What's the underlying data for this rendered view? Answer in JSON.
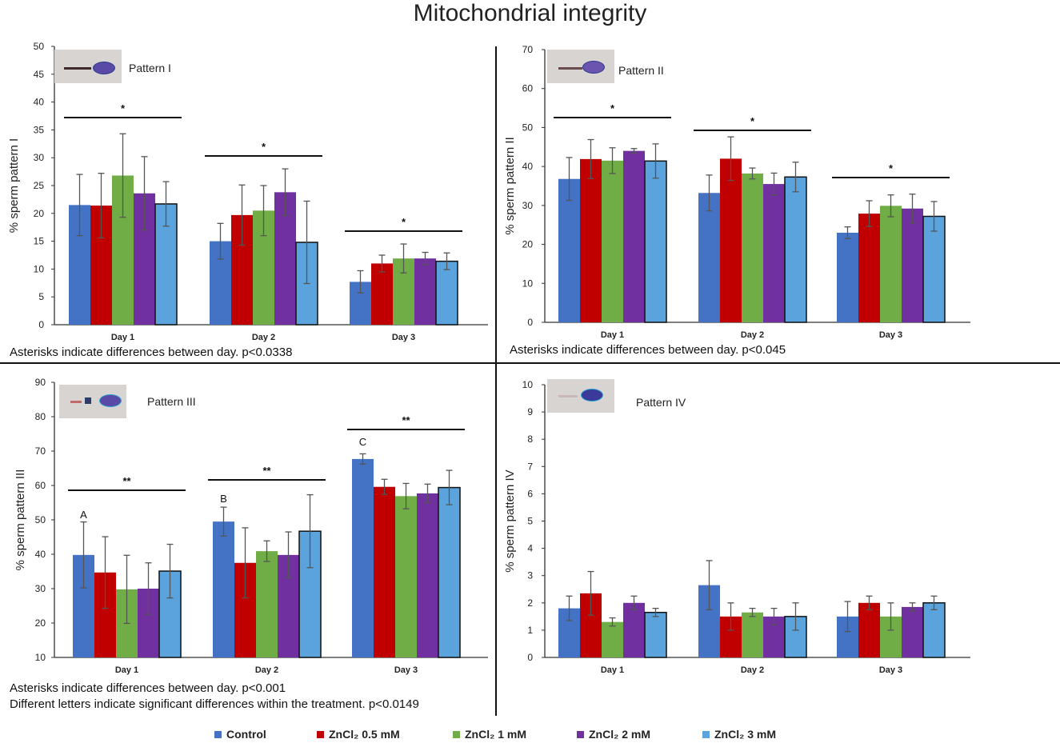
{
  "title": "Mitochondrial integrity",
  "colors": [
    "#4472c4",
    "#c00000",
    "#70ad47",
    "#7030a0",
    "#5ba3dc"
  ],
  "legend": [
    {
      "label": "Control",
      "color": "#4472c4"
    },
    {
      "label": "ZnCl₂ 0.5 mM",
      "color": "#c00000"
    },
    {
      "label": "ZnCl₂ 1 mM",
      "color": "#70ad47"
    },
    {
      "label": "ZnCl₂ 2 mM",
      "color": "#7030a0"
    },
    {
      "label": "ZnCl₂ 3 mM",
      "color": "#5ba3dc"
    }
  ],
  "notes": {
    "p1": "Asterisks indicate differences between day. p<0.0338",
    "p2": "Asterisks indicate differences between day. p<0.045",
    "p3a": "Asterisks indicate differences between day. p<0.001",
    "p3b": "Different letters indicate significant differences within the treatment. p<0.0149"
  },
  "chart_data": [
    {
      "type": "bar",
      "title": "Pattern I",
      "ylabel": "% sperm pattern I",
      "xlabel": "",
      "ylim": [
        0,
        50
      ],
      "yticks": [
        0,
        5,
        10,
        15,
        20,
        25,
        30,
        35,
        40,
        45,
        50
      ],
      "categories": [
        "Day 1",
        "Day 2",
        "Day 3"
      ],
      "series": [
        {
          "name": "Control",
          "values": [
            21.5,
            15.0,
            7.7
          ],
          "errors": [
            5.5,
            3.2,
            2.0
          ]
        },
        {
          "name": "ZnCl₂ 0.5 mM",
          "values": [
            21.4,
            19.7,
            11.0
          ],
          "errors": [
            5.8,
            5.4,
            1.5
          ]
        },
        {
          "name": "ZnCl₂ 1 mM",
          "values": [
            26.8,
            20.5,
            11.9
          ],
          "errors": [
            7.5,
            4.5,
            2.6
          ]
        },
        {
          "name": "ZnCl₂ 2 mM",
          "values": [
            23.6,
            23.8,
            11.9
          ],
          "errors": [
            6.6,
            4.2,
            1.1
          ]
        },
        {
          "name": "ZnCl₂ 3 mM",
          "values": [
            21.7,
            14.8,
            11.4
          ],
          "errors": [
            4.0,
            7.4,
            1.5
          ]
        }
      ],
      "annotations": [
        {
          "text": "*",
          "day": 0
        },
        {
          "text": "*",
          "day": 1
        },
        {
          "text": "*",
          "day": 2
        }
      ]
    },
    {
      "type": "bar",
      "title": "Pattern II",
      "ylabel": "% sperm pattern II",
      "xlabel": "",
      "ylim": [
        0,
        70
      ],
      "yticks": [
        0,
        10,
        20,
        30,
        40,
        50,
        60,
        70
      ],
      "categories": [
        "Day 1",
        "Day 2",
        "Day 3"
      ],
      "series": [
        {
          "name": "Control",
          "values": [
            36.8,
            33.2,
            23.0
          ],
          "errors": [
            5.5,
            4.6,
            1.5
          ]
        },
        {
          "name": "ZnCl₂ 0.5 mM",
          "values": [
            41.9,
            42.0,
            27.9
          ],
          "errors": [
            5.0,
            5.6,
            3.3
          ]
        },
        {
          "name": "ZnCl₂ 1 mM",
          "values": [
            41.5,
            38.2,
            29.9
          ],
          "errors": [
            3.3,
            1.4,
            2.8
          ]
        },
        {
          "name": "ZnCl₂ 2 mM",
          "values": [
            44.0,
            35.5,
            29.2
          ],
          "errors": [
            0.6,
            2.8,
            3.7
          ]
        },
        {
          "name": "ZnCl₂ 3 mM",
          "values": [
            41.4,
            37.3,
            27.2
          ],
          "errors": [
            4.4,
            3.8,
            3.8
          ]
        }
      ],
      "annotations": [
        {
          "text": "*",
          "day": 0
        },
        {
          "text": "*",
          "day": 1
        },
        {
          "text": "*",
          "day": 2
        }
      ]
    },
    {
      "type": "bar",
      "title": "Pattern III",
      "ylabel": "% sperm pattern III",
      "xlabel": "",
      "ylim": [
        10,
        90
      ],
      "yticks": [
        10,
        20,
        30,
        40,
        50,
        60,
        70,
        80,
        90
      ],
      "categories": [
        "Day 1",
        "Day 2",
        "Day 3"
      ],
      "series": [
        {
          "name": "Control",
          "values": [
            39.8,
            49.5,
            67.7
          ],
          "errors": [
            9.6,
            4.2,
            1.5
          ]
        },
        {
          "name": "ZnCl₂ 0.5 mM",
          "values": [
            34.7,
            37.5,
            59.6
          ],
          "errors": [
            10.4,
            10.2,
            2.2
          ]
        },
        {
          "name": "ZnCl₂ 1 mM",
          "values": [
            29.8,
            40.9,
            56.9
          ],
          "errors": [
            9.9,
            3.0,
            3.7
          ]
        },
        {
          "name": "ZnCl₂ 2 mM",
          "values": [
            30.0,
            39.8,
            57.7
          ],
          "errors": [
            7.5,
            6.7,
            2.7
          ]
        },
        {
          "name": "ZnCl₂ 3 mM",
          "values": [
            35.1,
            46.7,
            59.4
          ],
          "errors": [
            7.8,
            10.6,
            5.0
          ]
        }
      ],
      "annotations": [
        {
          "text": "**",
          "day": 0
        },
        {
          "text": "**",
          "day": 1
        },
        {
          "text": "**",
          "day": 2
        }
      ],
      "letters": [
        "A",
        "B",
        "C"
      ]
    },
    {
      "type": "bar",
      "title": "Pattern IV",
      "ylabel": "% sperm pattern IV",
      "xlabel": "",
      "ylim": [
        0,
        10
      ],
      "yticks": [
        0,
        1,
        2,
        3,
        4,
        5,
        6,
        7,
        8,
        9,
        10
      ],
      "categories": [
        "Day 1",
        "Day 2",
        "Day 3"
      ],
      "series": [
        {
          "name": "Control",
          "values": [
            1.8,
            2.65,
            1.5
          ],
          "errors": [
            0.45,
            0.9,
            0.55
          ]
        },
        {
          "name": "ZnCl₂ 0.5 mM",
          "values": [
            2.35,
            1.5,
            2.0
          ],
          "errors": [
            0.8,
            0.5,
            0.25
          ]
        },
        {
          "name": "ZnCl₂ 1 mM",
          "values": [
            1.3,
            1.65,
            1.5
          ],
          "errors": [
            0.15,
            0.15,
            0.5
          ]
        },
        {
          "name": "ZnCl₂ 2 mM",
          "values": [
            2.0,
            1.5,
            1.85
          ],
          "errors": [
            0.25,
            0.3,
            0.15
          ]
        },
        {
          "name": "ZnCl₂ 3 mM",
          "values": [
            1.65,
            1.5,
            2.0
          ],
          "errors": [
            0.15,
            0.5,
            0.25
          ]
        }
      ],
      "annotations": []
    }
  ]
}
